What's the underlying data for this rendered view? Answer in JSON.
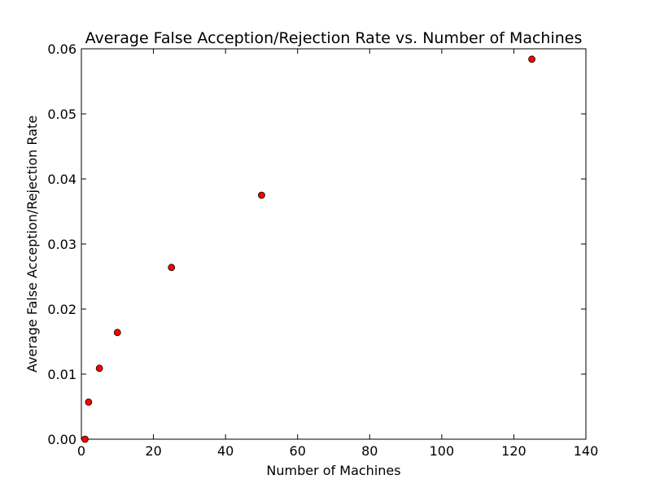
{
  "chart_data": {
    "type": "scatter",
    "title": "Average False Acception/Rejection Rate vs. Number of Machines",
    "xlabel": "Number of Machines",
    "ylabel": "Average False Acception/Rejection Rate",
    "xlim": [
      0,
      140
    ],
    "ylim": [
      0,
      0.06
    ],
    "xticks": [
      "0",
      "20",
      "40",
      "60",
      "80",
      "100",
      "120",
      "140"
    ],
    "yticks": [
      "0.00",
      "0.01",
      "0.02",
      "0.03",
      "0.04",
      "0.05",
      "0.06"
    ],
    "grid": false,
    "marker_color": "#ff0000",
    "marker_edge_color": "#000000",
    "series": [
      {
        "x": [
          1,
          2,
          5,
          10,
          25,
          50,
          125
        ],
        "y": [
          0.0,
          0.0057,
          0.0109,
          0.0164,
          0.0264,
          0.0375,
          0.0584
        ]
      }
    ]
  }
}
